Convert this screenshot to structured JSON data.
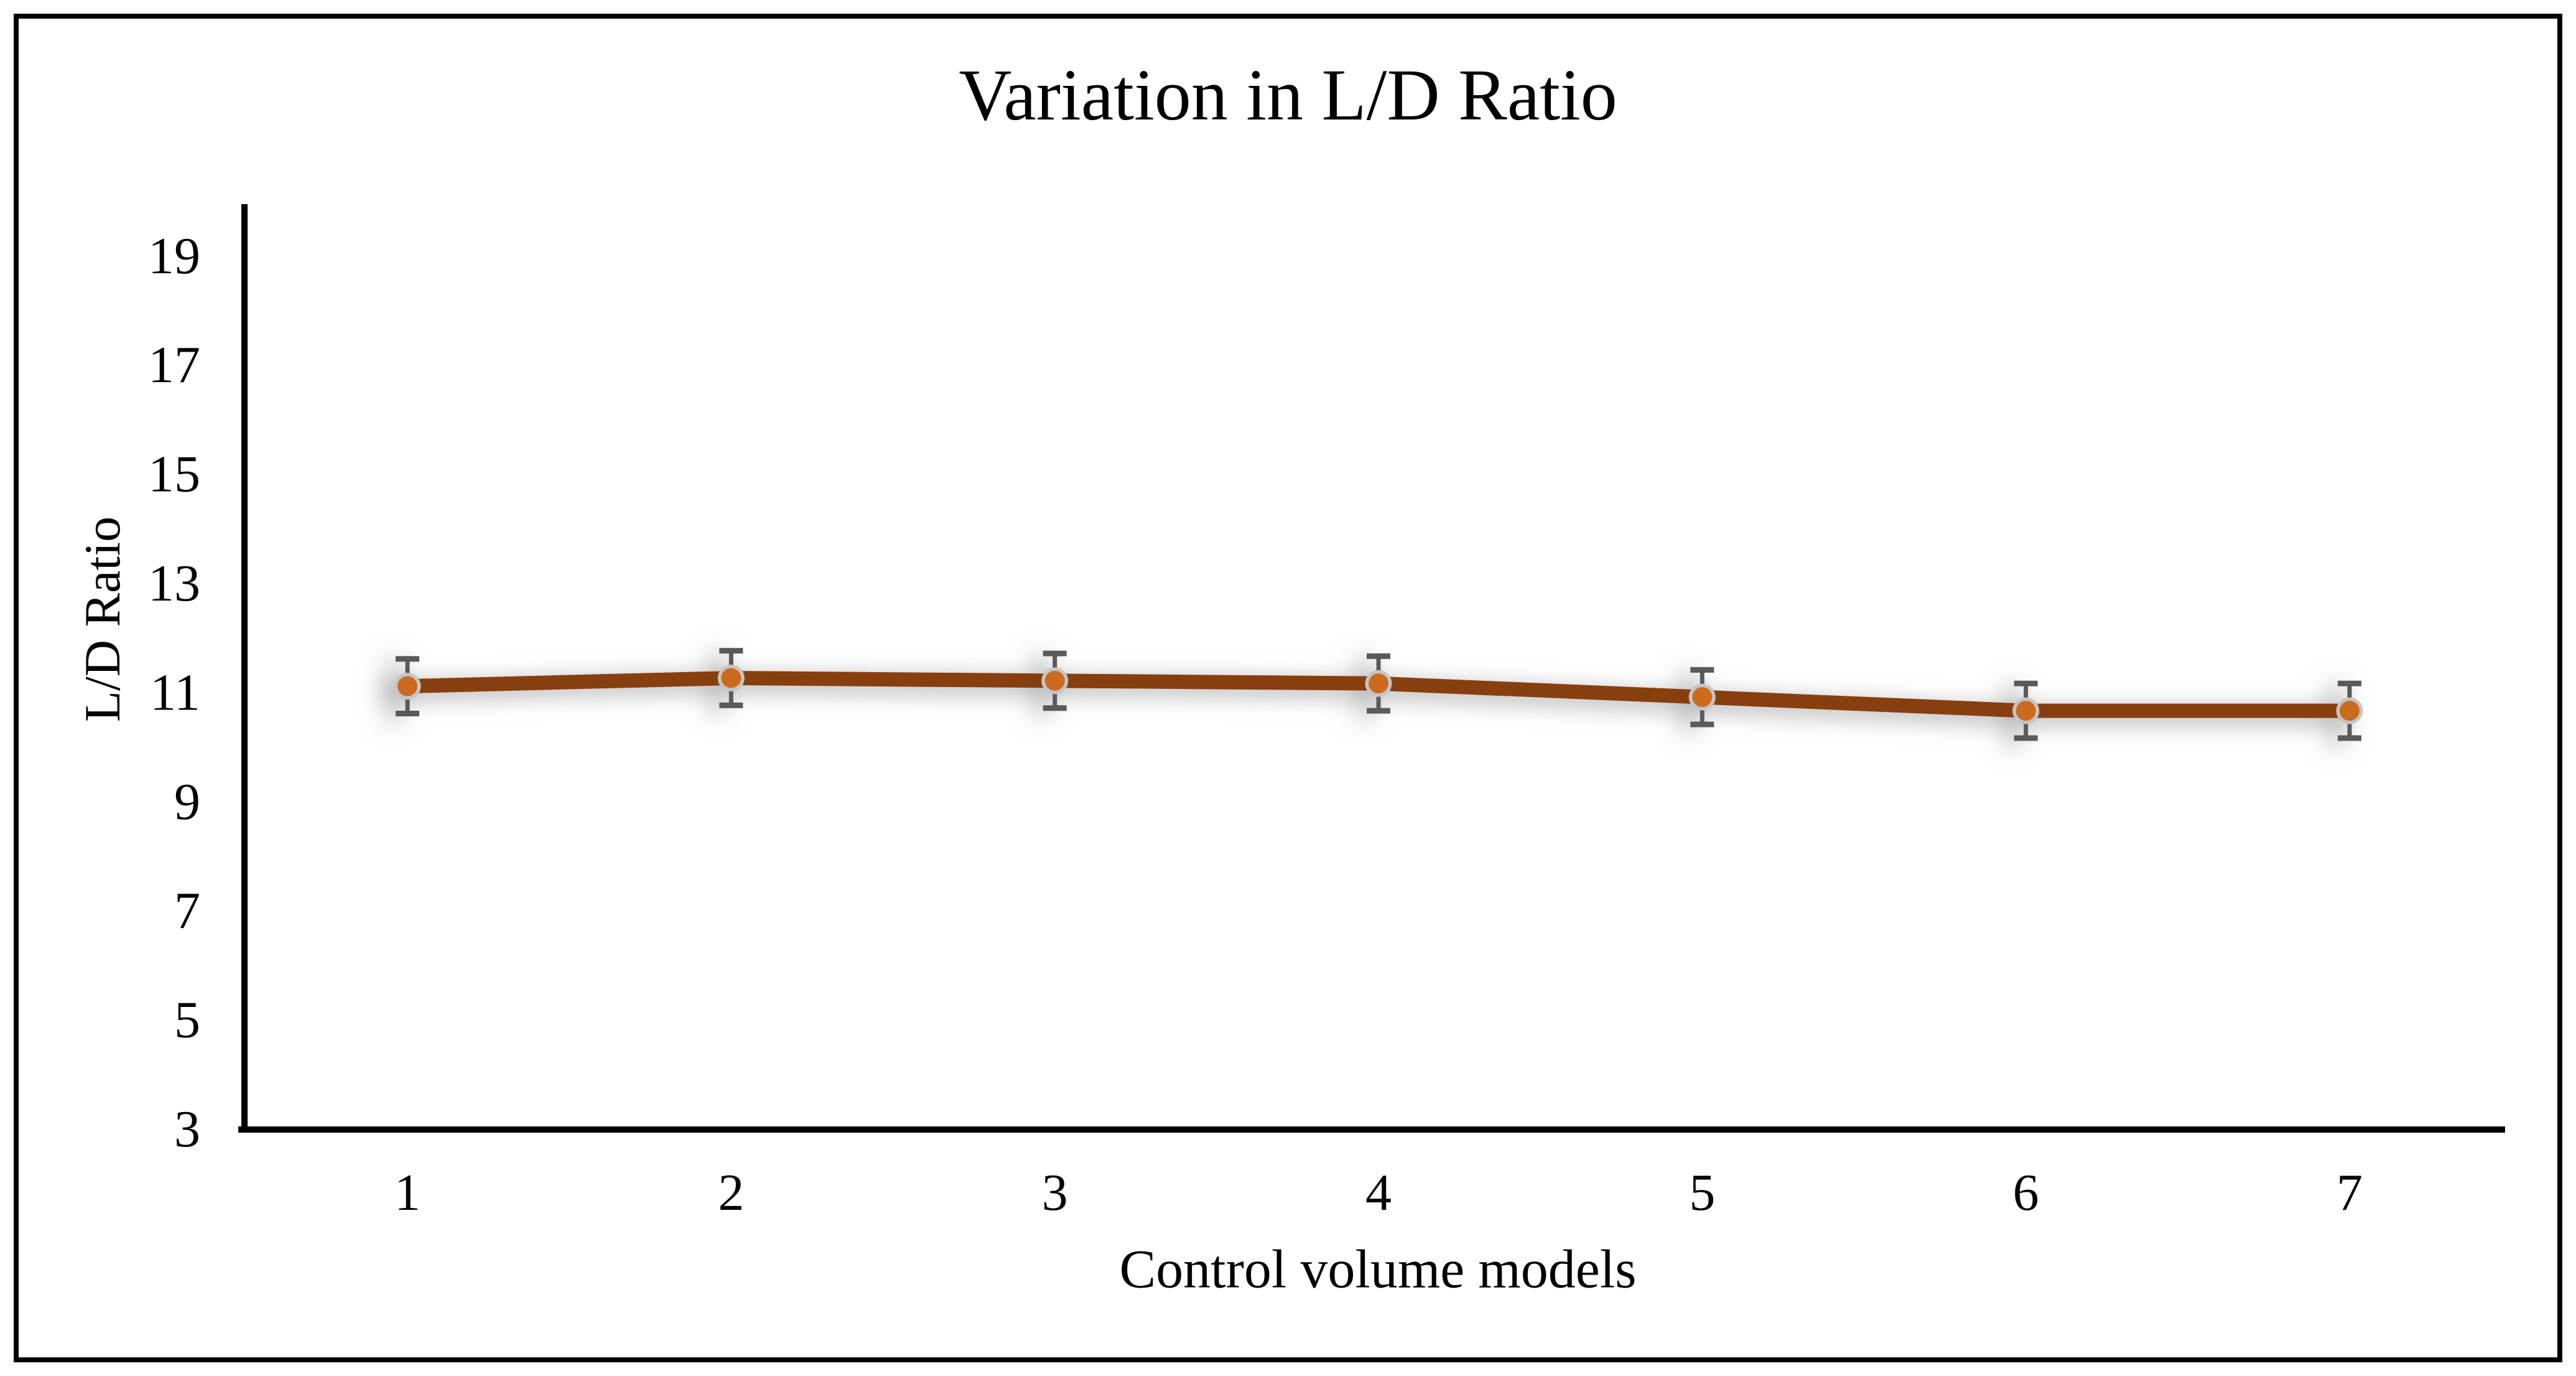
{
  "figure": {
    "background_color": "#ffffff",
    "border_color": "#000000",
    "axis_color": "#000000"
  },
  "chart_data": {
    "type": "line",
    "title": "Variation in L/D Ratio",
    "xlabel": "Control volume models",
    "ylabel": "L/D Ratio",
    "categories": [
      "1",
      "2",
      "3",
      "4",
      "5",
      "6",
      "7"
    ],
    "series": [
      {
        "name": "L/D Ratio",
        "values": [
          11.1,
          11.25,
          11.2,
          11.15,
          10.9,
          10.65,
          10.65
        ],
        "error_bar": 0.5,
        "line_color": "#883F10",
        "marker_fill": "#CC6A1E",
        "marker_ring": "#C5C5C5",
        "error_bar_color": "#5A5A5A"
      }
    ],
    "yticks": [
      3,
      5,
      7,
      9,
      11,
      13,
      15,
      17,
      19
    ],
    "ylim": [
      3,
      20
    ],
    "grid": false,
    "legend": "none"
  }
}
